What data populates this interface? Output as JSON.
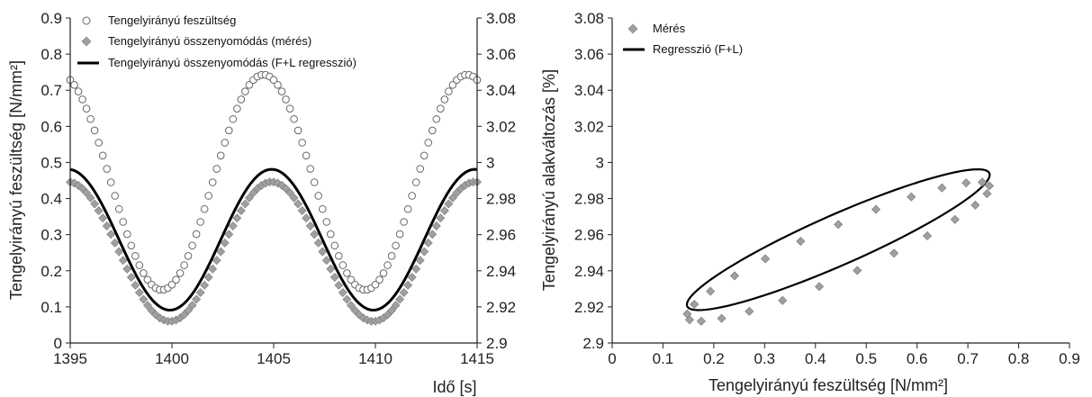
{
  "chart_data": [
    {
      "type": "scatter+line",
      "title": "",
      "xlabel": "Idő [s]",
      "ylabel": "Tengelyirányú feszültség [N/mm²]",
      "y2label": "",
      "xlim": [
        1395,
        1415
      ],
      "ylim": [
        0,
        0.9
      ],
      "y2lim": [
        2.9,
        3.08
      ],
      "xticks": [
        "1395",
        "1400",
        "1405",
        "1410",
        "1415"
      ],
      "yticks": [
        "0",
        "0.1",
        "0.2",
        "0.3",
        "0.4",
        "0.5",
        "0.6",
        "0.7",
        "0.8",
        "0.9"
      ],
      "y2ticks": [
        "2.9",
        "2.92",
        "2.94",
        "2.96",
        "2.98",
        "3",
        "3.02",
        "3.04",
        "3.06",
        "3.08"
      ],
      "grid": false,
      "legend_position": "top-left",
      "series": [
        {
          "name": "Tengelyirányú feszültség",
          "axis": "left",
          "marker": "open-circle",
          "color": "#555555",
          "model": {
            "mean": 0.445,
            "amplitude": 0.298,
            "period": 10,
            "peak_time": 1404.5,
            "t_start": 1395,
            "t_end": 1415,
            "step": 0.2
          }
        },
        {
          "name": "Tengelyirányú összenyomódás (mérés)",
          "axis": "right",
          "marker": "diamond",
          "color": "#a0a0a0",
          "model": {
            "mean": 2.9506,
            "amplitude": 0.0386,
            "period": 10,
            "peak_time": 1404.9,
            "t_start": 1395,
            "t_end": 1415,
            "step": 0.2
          }
        },
        {
          "name": "Tengelyirányú összenyomódás (F+L regresszió)",
          "axis": "right",
          "marker": "line",
          "color": "#000000",
          "model": {
            "mean": 2.9572,
            "amplitude": 0.039,
            "period": 10,
            "peak_time": 1404.9,
            "t_start": 1395,
            "t_end": 1415,
            "step": 0.1
          }
        }
      ]
    },
    {
      "type": "scatter+line",
      "title": "",
      "xlabel": "Tengelyirányú feszültség [N/mm²]",
      "ylabel": "Tengelyirányú alakváltozás [%]",
      "xlim": [
        0,
        0.9
      ],
      "ylim": [
        2.9,
        3.08
      ],
      "xticks": [
        "0",
        "0.1",
        "0.2",
        "0.3",
        "0.4",
        "0.5",
        "0.6",
        "0.7",
        "0.8",
        "0.9"
      ],
      "yticks": [
        "2.9",
        "2.92",
        "2.94",
        "2.96",
        "2.98",
        "3",
        "3.02",
        "3.04",
        "3.06",
        "3.08"
      ],
      "grid": false,
      "legend_position": "top-left",
      "series": [
        {
          "name": "Mérés",
          "marker": "diamond",
          "color": "#a0a0a0",
          "model": {
            "x_mean": 0.445,
            "x_amplitude": 0.298,
            "y_mean": 2.9506,
            "y_amplitude": 0.0386,
            "phase_lag": 0.4,
            "period": 10,
            "t_start": 1395,
            "t_end": 1415,
            "step": 0.4
          }
        },
        {
          "name": "Regresszió (F+L)",
          "marker": "line",
          "color": "#000000",
          "model": {
            "x_mean": 0.445,
            "x_amplitude": 0.298,
            "y_mean": 2.9572,
            "y_amplitude": 0.039,
            "phase_lag": 0.4,
            "period": 10,
            "t_start": 1395,
            "t_end": 1415,
            "step": 0.1
          }
        }
      ]
    }
  ]
}
